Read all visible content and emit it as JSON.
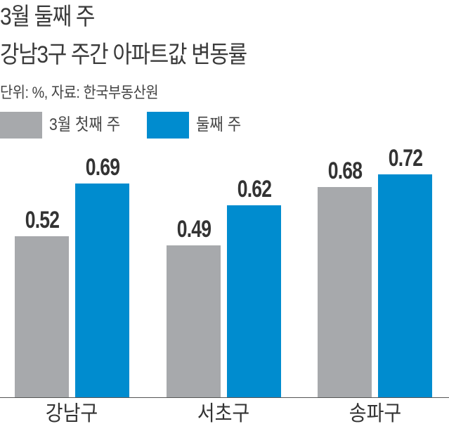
{
  "title_line1": "3월 둘째 주",
  "title_line2": "강남3구 주간 아파트값 변동률",
  "subtitle": "단위: %, 자료: 한국부동산원",
  "legend": [
    {
      "label": "3월 첫째 주",
      "color": "#a7a9ac"
    },
    {
      "label": "둘째 주",
      "color": "#008ccf"
    }
  ],
  "categories": [
    "강남구",
    "서초구",
    "송파구"
  ],
  "values_labels": {
    "s0": [
      "0.52",
      "0.49",
      "0.68"
    ],
    "s1": [
      "0.69",
      "0.62",
      "0.72"
    ]
  },
  "chart_data": {
    "type": "bar",
    "title": "3월 둘째 주 강남3구 주간 아파트값 변동률",
    "subtitle": "단위: %, 자료: 한국부동산원",
    "categories": [
      "강남구",
      "서초구",
      "송파구"
    ],
    "series": [
      {
        "name": "3월 첫째 주",
        "color": "#a7a9ac",
        "values": [
          0.52,
          0.49,
          0.68
        ]
      },
      {
        "name": "둘째 주",
        "color": "#008ccf",
        "values": [
          0.69,
          0.62,
          0.72
        ]
      }
    ],
    "xlabel": "",
    "ylabel": "%",
    "ylim": [
      0,
      0.75
    ],
    "grid": false,
    "legend_position": "top-left",
    "data_labels": true
  }
}
